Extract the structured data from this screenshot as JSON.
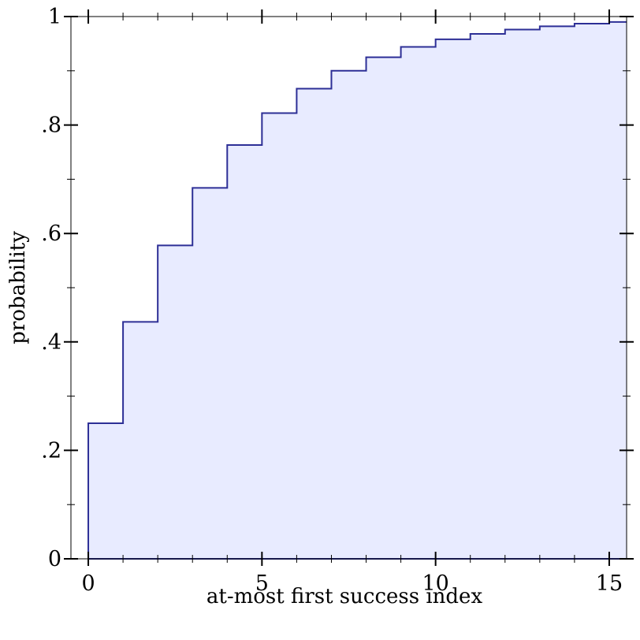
{
  "chart_data": {
    "type": "area",
    "step": "post",
    "title": "",
    "xlabel": "at-most first success index",
    "ylabel": "probability",
    "xlim": [
      -0.5,
      15.5
    ],
    "ylim": [
      0,
      1
    ],
    "x_ticks": [
      0,
      5,
      10,
      15
    ],
    "x_tick_labels": [
      "0",
      "5",
      "10",
      "15"
    ],
    "x_minor_ticks": [
      1,
      2,
      3,
      4,
      6,
      7,
      8,
      9,
      11,
      12,
      13,
      14
    ],
    "y_ticks": [
      0,
      0.2,
      0.4,
      0.6,
      0.8,
      1
    ],
    "y_tick_labels": [
      "0",
      ".2",
      ".4",
      ".6",
      ".8",
      "1"
    ],
    "y_minor_ticks": [
      0.1,
      0.3,
      0.5,
      0.7,
      0.9
    ],
    "grid": false,
    "series": [
      {
        "x": [
          0,
          1,
          2,
          3,
          4,
          5,
          6,
          7,
          8,
          9,
          10,
          11,
          12,
          13,
          14,
          15
        ],
        "values": [
          0.25,
          0.437,
          0.578,
          0.684,
          0.763,
          0.822,
          0.867,
          0.9,
          0.925,
          0.944,
          0.958,
          0.968,
          0.976,
          0.982,
          0.987,
          0.99
        ]
      }
    ],
    "colors": {
      "line": "#2d2f96",
      "fill": "#e8ebff",
      "axis": "#000000"
    }
  }
}
